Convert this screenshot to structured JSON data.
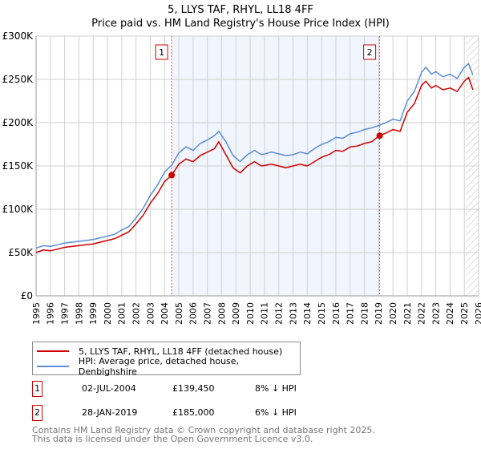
{
  "chart_data": {
    "type": "line",
    "title": "5, LLYS TAF, RHYL, LL18 4FF",
    "subtitle": "Price paid vs. HM Land Registry's House Price Index (HPI)",
    "xlim": [
      1995,
      2026
    ],
    "ylim": [
      0,
      300000
    ],
    "x_ticks": [
      "1995",
      "1996",
      "1997",
      "1998",
      "1999",
      "2000",
      "2001",
      "2002",
      "2003",
      "2004",
      "2005",
      "2006",
      "2007",
      "2008",
      "2009",
      "2010",
      "2011",
      "2012",
      "2013",
      "2014",
      "2015",
      "2016",
      "2017",
      "2018",
      "2019",
      "2020",
      "2021",
      "2022",
      "2023",
      "2024",
      "2025",
      "2026"
    ],
    "y_ticks": [
      {
        "v": 0,
        "label": "£0"
      },
      {
        "v": 50000,
        "label": "£50K"
      },
      {
        "v": 100000,
        "label": "£100K"
      },
      {
        "v": 150000,
        "label": "£150K"
      },
      {
        "v": 200000,
        "label": "£200K"
      },
      {
        "v": 250000,
        "label": "£250K"
      },
      {
        "v": 300000,
        "label": "£300K"
      }
    ],
    "grid": true,
    "series": [
      {
        "name": "5, LLYS TAF, RHYL, LL18 4FF (detached house)",
        "color": "#cc0000",
        "x": [
          1995,
          1995.5,
          1996,
          1996.5,
          1997,
          1997.5,
          1998,
          1998.5,
          1999,
          1999.5,
          2000,
          2000.5,
          2001,
          2001.5,
          2002,
          2002.5,
          2003,
          2003.5,
          2004,
          2004.5,
          2005,
          2005.5,
          2006,
          2006.5,
          2007,
          2007.5,
          2007.8,
          2008.3,
          2008.8,
          2009.3,
          2009.8,
          2010.3,
          2010.8,
          2011.5,
          2012,
          2012.5,
          2013,
          2013.5,
          2014,
          2014.5,
          2015,
          2015.5,
          2016,
          2016.5,
          2017,
          2017.5,
          2018,
          2018.5,
          2019.07,
          2019.5,
          2020,
          2020.5,
          2021,
          2021.5,
          2022,
          2022.3,
          2022.7,
          2023,
          2023.5,
          2024,
          2024.5,
          2025,
          2025.3,
          2025.6
        ],
        "y": [
          50000,
          53000,
          52000,
          54000,
          56000,
          57000,
          58000,
          59000,
          60000,
          62000,
          64000,
          66000,
          70000,
          74000,
          83000,
          93000,
          107000,
          118000,
          132000,
          139450,
          152000,
          158000,
          155000,
          162000,
          166000,
          170000,
          178000,
          163000,
          148000,
          142000,
          150000,
          155000,
          150000,
          152000,
          150000,
          148000,
          150000,
          152000,
          150000,
          155000,
          160000,
          163000,
          168000,
          167000,
          172000,
          173000,
          176000,
          178000,
          185000,
          188000,
          192000,
          190000,
          212000,
          222000,
          243000,
          248000,
          240000,
          243000,
          238000,
          240000,
          236000,
          248000,
          252000,
          238000
        ]
      },
      {
        "name": "HPI: Average price, detached house, Denbighshire",
        "color": "#5b8dd6",
        "x": [
          1995,
          1995.5,
          1996,
          1996.5,
          1997,
          1997.5,
          1998,
          1998.5,
          1999,
          1999.5,
          2000,
          2000.5,
          2001,
          2001.5,
          2002,
          2002.5,
          2003,
          2003.5,
          2004,
          2004.5,
          2005,
          2005.5,
          2006,
          2006.5,
          2007,
          2007.5,
          2007.8,
          2008.3,
          2008.8,
          2009.3,
          2009.8,
          2010.3,
          2010.8,
          2011.5,
          2012,
          2012.5,
          2013,
          2013.5,
          2014,
          2014.5,
          2015,
          2015.5,
          2016,
          2016.5,
          2017,
          2017.5,
          2018,
          2018.5,
          2019.07,
          2019.5,
          2020,
          2020.5,
          2021,
          2021.5,
          2022,
          2022.3,
          2022.7,
          2023,
          2023.5,
          2024,
          2024.5,
          2025,
          2025.3,
          2025.6
        ],
        "y": [
          55000,
          58000,
          57000,
          59000,
          61000,
          62000,
          63000,
          64000,
          65000,
          67000,
          69000,
          71000,
          76000,
          80000,
          90000,
          101000,
          116000,
          128000,
          143000,
          151000,
          165000,
          172000,
          168000,
          176000,
          180000,
          185000,
          190000,
          178000,
          162000,
          155000,
          163000,
          168000,
          163000,
          166000,
          164000,
          162000,
          163000,
          166000,
          164000,
          170000,
          175000,
          178000,
          183000,
          182000,
          187000,
          189000,
          192000,
          194000,
          197000,
          200000,
          204000,
          202000,
          225000,
          236000,
          258000,
          264000,
          256000,
          259000,
          253000,
          256000,
          251000,
          264000,
          268000,
          255000
        ]
      }
    ],
    "annotations": [
      {
        "label": "1",
        "x": 2004.5,
        "price": 139450
      },
      {
        "label": "2",
        "x": 2019.07,
        "price": 185000
      }
    ],
    "shaded_range": [
      2004.5,
      2019.07
    ],
    "hatched_from": 2025.1,
    "legend_position": "bottom"
  },
  "legend": {
    "property": "5, LLYS TAF, RHYL, LL18 4FF (detached house)",
    "hpi": "HPI: Average price, detached house, Denbighshire"
  },
  "sales": [
    {
      "num": "1",
      "date": "02-JUL-2004",
      "price": "£139,450",
      "pct": "8% ↓ HPI"
    },
    {
      "num": "2",
      "date": "28-JAN-2019",
      "price": "£185,000",
      "pct": "6% ↓ HPI"
    }
  ],
  "footer": {
    "line1": "Contains HM Land Registry data © Crown copyright and database right 2025.",
    "line2": "This data is licensed under the Open Government Licence v3.0."
  }
}
